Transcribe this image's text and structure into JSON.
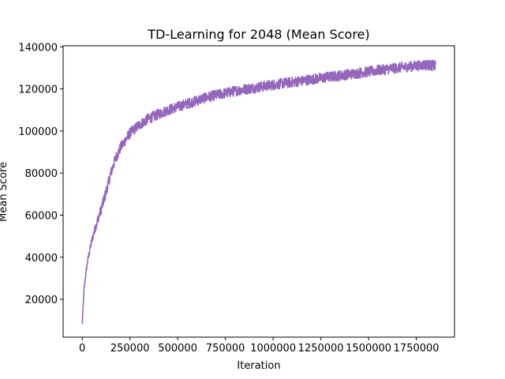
{
  "chart_data": {
    "type": "line",
    "title": "TD-Learning for 2048 (Mean Score)",
    "xlabel": "Iteration",
    "ylabel": "Mean Score",
    "xlim": [
      -100000,
      1950000
    ],
    "ylim": [
      2000,
      140500
    ],
    "xticks": [
      0,
      250000,
      500000,
      750000,
      1000000,
      1250000,
      1500000,
      1750000
    ],
    "xtick_labels": [
      "0",
      "250000",
      "500000",
      "750000",
      "1000000",
      "1250000",
      "1500000",
      "1750000"
    ],
    "yticks": [
      20000,
      40000,
      60000,
      80000,
      100000,
      120000,
      140000
    ],
    "ytick_labels": [
      "20000",
      "40000",
      "60000",
      "80000",
      "100000",
      "120000",
      "140000"
    ],
    "grid": false,
    "series": [
      {
        "color": "#9467bd",
        "noise_amplitude": 2500,
        "x": [
          0,
          10000,
          20000,
          30000,
          50000,
          75000,
          100000,
          125000,
          150000,
          175000,
          200000,
          250000,
          300000,
          350000,
          400000,
          450000,
          500000,
          550000,
          600000,
          650000,
          700000,
          750000,
          800000,
          850000,
          900000,
          950000,
          1000000,
          1100000,
          1200000,
          1300000,
          1400000,
          1500000,
          1600000,
          1700000,
          1800000,
          1850000
        ],
        "y": [
          8000,
          25000,
          33000,
          39000,
          48000,
          56000,
          63000,
          71000,
          80000,
          87000,
          92000,
          99000,
          103000,
          106000,
          108000,
          110000,
          111500,
          113000,
          114500,
          116000,
          117000,
          118000,
          119000,
          119800,
          120500,
          121200,
          122000,
          123200,
          124500,
          125800,
          127000,
          128200,
          129500,
          130500,
          131500,
          131000
        ]
      }
    ]
  }
}
